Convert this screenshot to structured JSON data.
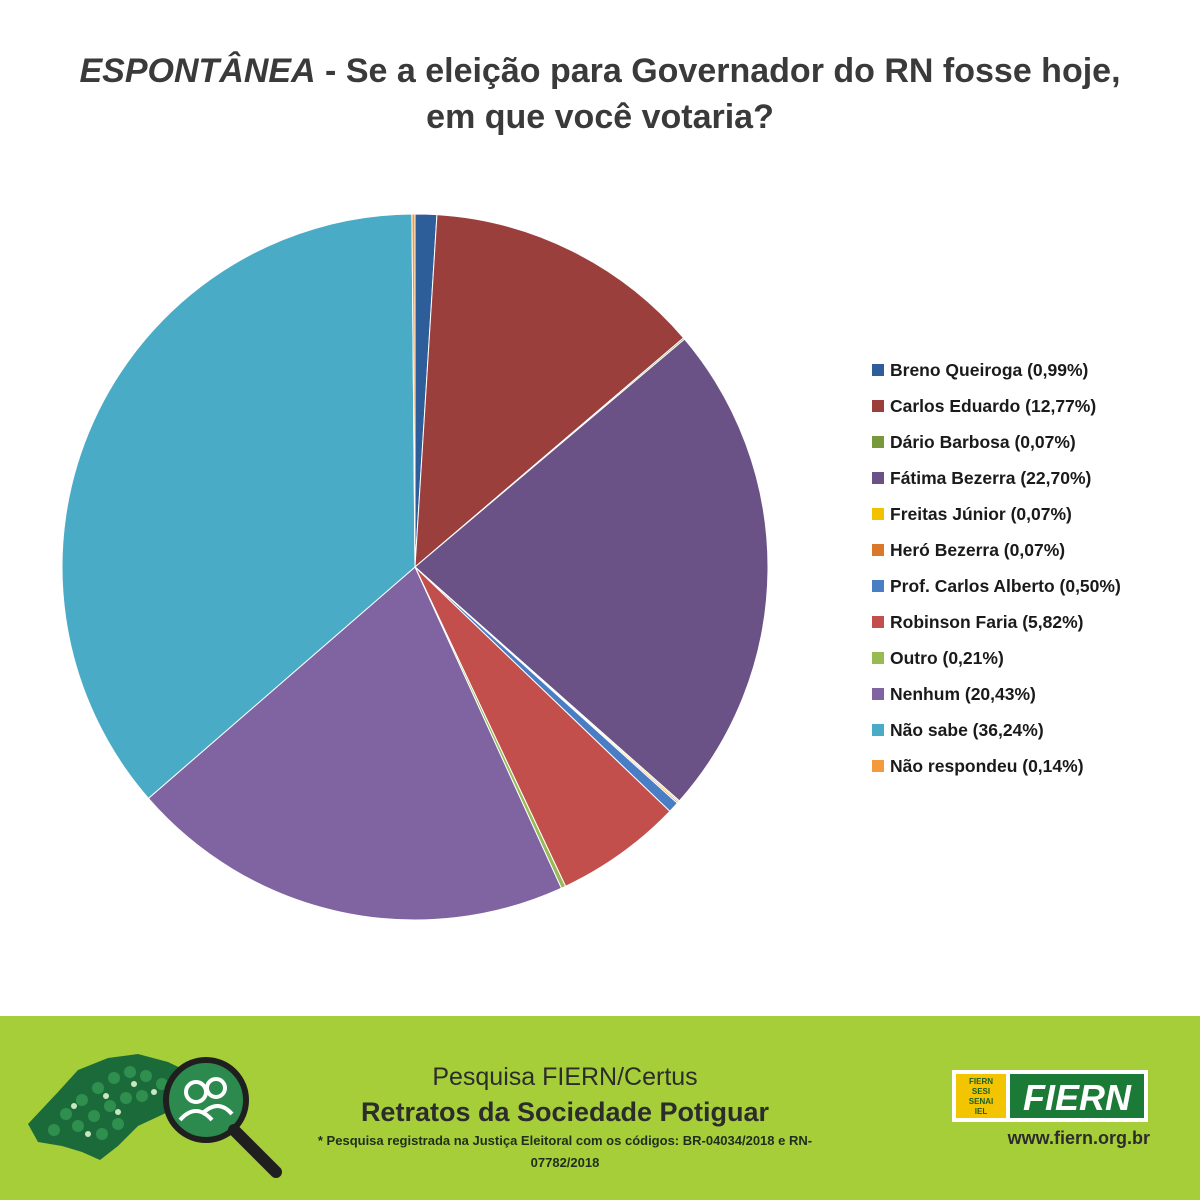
{
  "title": {
    "emphasis": "ESPONTÂNEA",
    "line1_rest": " - Se a eleição para Governador do RN fosse hoje,",
    "line2": "em que você votaria?"
  },
  "chart_data": {
    "type": "pie",
    "title": "ESPONTÂNEA - Se a eleição para Governador do RN fosse hoje, em que você votaria?",
    "legend_position": "right",
    "start_angle": "top",
    "direction": "clockwise",
    "slices": [
      {
        "name": "Breno Queiroga",
        "value": 0.99,
        "label": "Breno Queiroga (0,99%)",
        "color": "#2e5e9a"
      },
      {
        "name": "Carlos Eduardo",
        "value": 12.77,
        "label": "Carlos Eduardo (12,77%)",
        "color": "#9b3f3d"
      },
      {
        "name": "Dário Barbosa",
        "value": 0.07,
        "label": "Dário Barbosa (0,07%)",
        "color": "#77993c"
      },
      {
        "name": "Fátima Bezerra",
        "value": 22.7,
        "label": "Fátima Bezerra (22,70%)",
        "color": "#6a5287"
      },
      {
        "name": "Freitas Júnior",
        "value": 0.07,
        "label": "Freitas Júnior (0,07%)",
        "color": "#f2c100"
      },
      {
        "name": "Heró Bezerra",
        "value": 0.07,
        "label": "Heró Bezerra (0,07%)",
        "color": "#d9772b"
      },
      {
        "name": "Prof. Carlos Alberto",
        "value": 0.5,
        "label": "Prof. Carlos Alberto (0,50%)",
        "color": "#4a7ec4"
      },
      {
        "name": "Robinson Faria",
        "value": 5.82,
        "label": "Robinson Faria (5,82%)",
        "color": "#c24f4c"
      },
      {
        "name": "Outro",
        "value": 0.21,
        "label": "Outro (0,21%)",
        "color": "#98ba55"
      },
      {
        "name": "Nenhum",
        "value": 20.43,
        "label": "Nenhum (20,43%)",
        "color": "#7f64a1"
      },
      {
        "name": "Não sabe",
        "value": 36.24,
        "label": "Não sabe (36,24%)",
        "color": "#4aabc6"
      },
      {
        "name": "Não respondeu",
        "value": 0.14,
        "label": "Não respondeu (0,14%)",
        "color": "#f39a3c"
      }
    ]
  },
  "footer": {
    "survey_label": "Pesquisa FIERN/Certus",
    "survey_title": "Retratos da Sociedade Potiguar",
    "registration_note": "* Pesquisa registrada na Justiça Eleitoral com os códigos: BR-04034/2018 e RN-07782/2018",
    "brand": "FIERN",
    "brand_sub": [
      "FIERN",
      "SESI",
      "SENAI",
      "IEL"
    ],
    "website": "www.fiern.org.br",
    "background": "#a6ce39"
  }
}
